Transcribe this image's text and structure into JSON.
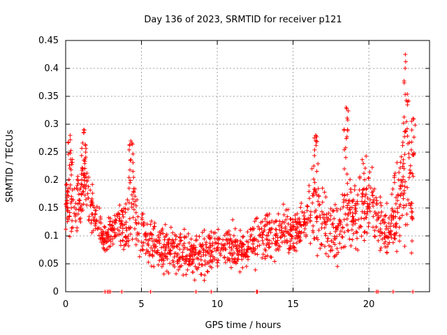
{
  "chart_data": {
    "type": "scatter",
    "title": "Day 136 of 2023, SRMTID for receiver p121",
    "xlabel": "GPS time / hours",
    "ylabel": "SRMTID / TECUs",
    "xlim": [
      0,
      24
    ],
    "ylim": [
      0,
      0.45
    ],
    "xticks": [
      0,
      5,
      10,
      15,
      20
    ],
    "yticks": [
      0,
      0.05,
      0.1,
      0.15,
      0.2,
      0.25,
      0.3,
      0.35,
      0.4,
      0.45
    ],
    "xtick_labels": [
      "0",
      "5",
      "10",
      "15",
      "20"
    ],
    "ytick_labels": [
      "0",
      "0.05",
      "0.1",
      "0.15",
      "0.2",
      "0.25",
      "0.3",
      "0.35",
      "0.4",
      "0.45"
    ],
    "grid": true,
    "marker": "+",
    "color": "#ff0000",
    "series": [
      {
        "name": "SRMTID",
        "envelope": {
          "x": [
            0,
            0.3,
            0.6,
            1.0,
            1.2,
            1.6,
            2.0,
            2.5,
            3.0,
            3.5,
            4.0,
            4.4,
            4.8,
            5.5,
            6.5,
            7.5,
            8.5,
            9.5,
            10.5,
            11.5,
            12.5,
            13.5,
            14.5,
            15.2,
            15.8,
            16.3,
            16.8,
            17.3,
            18.0,
            18.6,
            19.2,
            19.8,
            20.3,
            20.8,
            21.2,
            21.6,
            22.0,
            22.3,
            22.6,
            22.9
          ],
          "center": [
            0.16,
            0.17,
            0.14,
            0.17,
            0.21,
            0.16,
            0.13,
            0.09,
            0.1,
            0.12,
            0.11,
            0.16,
            0.11,
            0.09,
            0.075,
            0.07,
            0.065,
            0.07,
            0.08,
            0.075,
            0.09,
            0.1,
            0.11,
            0.1,
            0.13,
            0.16,
            0.14,
            0.11,
            0.1,
            0.17,
            0.13,
            0.18,
            0.14,
            0.12,
            0.1,
            0.14,
            0.16,
            0.19,
            0.21,
            0.14
          ],
          "spread": [
            0.03,
            0.06,
            0.04,
            0.05,
            0.05,
            0.04,
            0.03,
            0.03,
            0.03,
            0.03,
            0.04,
            0.06,
            0.04,
            0.035,
            0.03,
            0.035,
            0.035,
            0.035,
            0.035,
            0.03,
            0.035,
            0.035,
            0.035,
            0.035,
            0.04,
            0.06,
            0.05,
            0.04,
            0.04,
            0.08,
            0.05,
            0.07,
            0.05,
            0.04,
            0.04,
            0.05,
            0.08,
            0.12,
            0.1,
            0.05
          ]
        },
        "peaks": [
          {
            "x": 0.3,
            "y": 0.28
          },
          {
            "x": 1.2,
            "y": 0.29
          },
          {
            "x": 4.3,
            "y": 0.27
          },
          {
            "x": 16.5,
            "y": 0.28
          },
          {
            "x": 18.5,
            "y": 0.33
          },
          {
            "x": 22.4,
            "y": 0.425
          },
          {
            "x": 22.9,
            "y": 0.31
          }
        ],
        "zero_points": [
          2.6,
          2.75,
          2.85,
          2.95,
          3.7,
          5.6,
          8.6,
          9.6,
          12.6,
          12.65,
          20.5,
          20.6,
          21.6,
          22.9
        ]
      }
    ]
  }
}
